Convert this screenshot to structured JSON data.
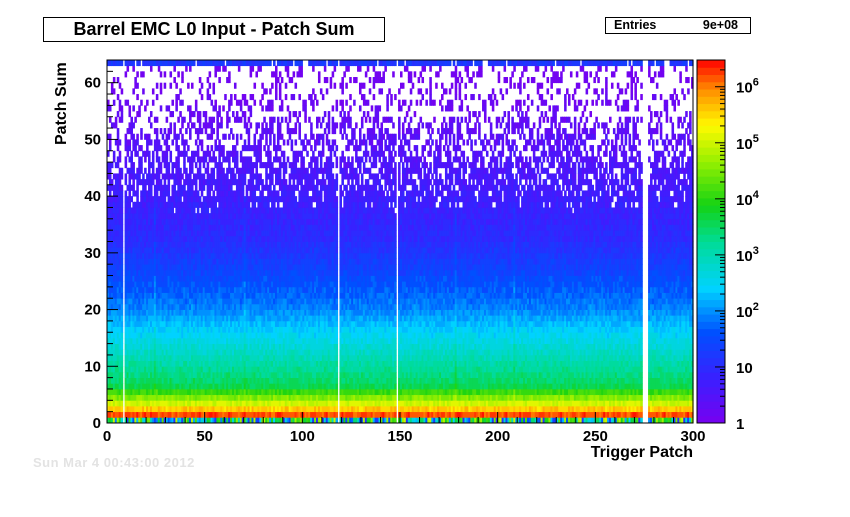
{
  "chart_data": {
    "type": "heatmap",
    "title": "Barrel EMC L0 Input - Patch Sum",
    "xlabel": "Trigger Patch",
    "ylabel": "Patch Sum",
    "xlim": [
      0,
      300
    ],
    "ylim": [
      0,
      64
    ],
    "x_ticks": [
      "0",
      "50",
      "100",
      "150",
      "200",
      "250",
      "300"
    ],
    "y_ticks": [
      "0",
      "10",
      "20",
      "30",
      "40",
      "50",
      "60"
    ],
    "colorbar": {
      "scale": "log",
      "range": [
        1,
        3000000
      ],
      "labels": [
        {
          "value": 1,
          "text": "1"
        },
        {
          "value": 10,
          "text": "10"
        },
        {
          "value": 100,
          "text": "10",
          "exp": "2"
        },
        {
          "value": 1000,
          "text": "10",
          "exp": "3"
        },
        {
          "value": 10000,
          "text": "10",
          "exp": "4"
        },
        {
          "value": 100000,
          "text": "10",
          "exp": "5"
        },
        {
          "value": 1000000,
          "text": "10",
          "exp": "6"
        }
      ]
    },
    "stats": {
      "label": "Entries",
      "value": "9e+08"
    },
    "empty_columns": [
      8,
      118,
      148,
      274,
      275,
      276
    ],
    "description": "Counts fall steeply with patch sum: ~1e6 at sum 1-2, ~1e4 near sum 5, ~1e2 near sum 20, ~1e1 near sum 30, sparse single counts above sum 40; saturated row at sum 63."
  },
  "footer_text": "Sun Mar  4 00:43:00 2012"
}
